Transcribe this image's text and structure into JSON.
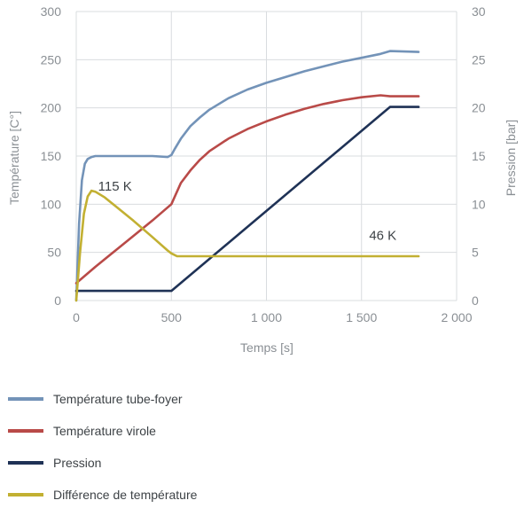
{
  "chart_data": {
    "type": "line",
    "xlabel": "Temps [s]",
    "ylabel": "Température [C°]",
    "y2label": "Pression [bar]",
    "xlim": [
      0,
      2000
    ],
    "ylim": [
      0,
      300
    ],
    "y2lim": [
      0,
      30
    ],
    "x_ticks": [
      0,
      500,
      1000,
      1500,
      2000
    ],
    "x_tick_labels": [
      "0",
      "500",
      "1 000",
      "1 500",
      "2 000"
    ],
    "y_ticks": [
      0,
      50,
      100,
      150,
      200,
      250,
      300
    ],
    "y_tick_labels": [
      "0",
      "50",
      "100",
      "150",
      "200",
      "250",
      "300"
    ],
    "y2_ticks": [
      0,
      5,
      10,
      15,
      20,
      25,
      30
    ],
    "y2_tick_labels": [
      "0",
      "5",
      "10",
      "15",
      "20",
      "25",
      "30"
    ],
    "grid": {
      "x": true,
      "y": true
    },
    "legend_position": "bottom",
    "series": [
      {
        "name": "Température tube-foyer",
        "axis": "left",
        "color": "#7393b8",
        "points": [
          [
            0,
            0
          ],
          [
            15,
            80
          ],
          [
            30,
            125
          ],
          [
            45,
            142
          ],
          [
            60,
            147
          ],
          [
            80,
            149
          ],
          [
            100,
            150
          ],
          [
            200,
            150
          ],
          [
            300,
            150
          ],
          [
            400,
            150
          ],
          [
            480,
            149
          ],
          [
            500,
            151
          ],
          [
            520,
            158
          ],
          [
            550,
            168
          ],
          [
            600,
            181
          ],
          [
            650,
            190
          ],
          [
            700,
            198
          ],
          [
            800,
            210
          ],
          [
            900,
            219
          ],
          [
            1000,
            226
          ],
          [
            1100,
            232
          ],
          [
            1200,
            238
          ],
          [
            1300,
            243
          ],
          [
            1400,
            248
          ],
          [
            1500,
            252
          ],
          [
            1600,
            256
          ],
          [
            1650,
            259
          ],
          [
            1800,
            258
          ]
        ]
      },
      {
        "name": "Température virole",
        "axis": "left",
        "color": "#b94a48",
        "points": [
          [
            0,
            18
          ],
          [
            100,
            35
          ],
          [
            200,
            51
          ],
          [
            300,
            67
          ],
          [
            400,
            83
          ],
          [
            500,
            100
          ],
          [
            550,
            122
          ],
          [
            600,
            135
          ],
          [
            650,
            146
          ],
          [
            700,
            155
          ],
          [
            800,
            168
          ],
          [
            900,
            178
          ],
          [
            1000,
            186
          ],
          [
            1100,
            193
          ],
          [
            1200,
            199
          ],
          [
            1300,
            204
          ],
          [
            1400,
            208
          ],
          [
            1500,
            211
          ],
          [
            1600,
            213
          ],
          [
            1650,
            212
          ],
          [
            1800,
            212
          ]
        ]
      },
      {
        "name": "Pression",
        "axis": "right",
        "color": "#1f3256",
        "points": [
          [
            0,
            1
          ],
          [
            500,
            1
          ],
          [
            1650,
            20.1
          ],
          [
            1800,
            20.1
          ]
        ]
      },
      {
        "name": "Différence de température",
        "axis": "left",
        "color": "#c2b032",
        "points": [
          [
            0,
            0
          ],
          [
            20,
            50
          ],
          [
            40,
            90
          ],
          [
            60,
            108
          ],
          [
            80,
            114
          ],
          [
            100,
            113
          ],
          [
            150,
            107
          ],
          [
            200,
            99
          ],
          [
            300,
            83
          ],
          [
            400,
            66
          ],
          [
            480,
            52
          ],
          [
            500,
            49
          ],
          [
            530,
            46
          ],
          [
            600,
            46
          ],
          [
            1000,
            46
          ],
          [
            1500,
            46
          ],
          [
            1800,
            46
          ]
        ]
      }
    ],
    "annotations": [
      {
        "text": "115 K",
        "x": 115,
        "y": 114
      },
      {
        "text": "46 K",
        "x": 1540,
        "y": 63
      }
    ]
  }
}
